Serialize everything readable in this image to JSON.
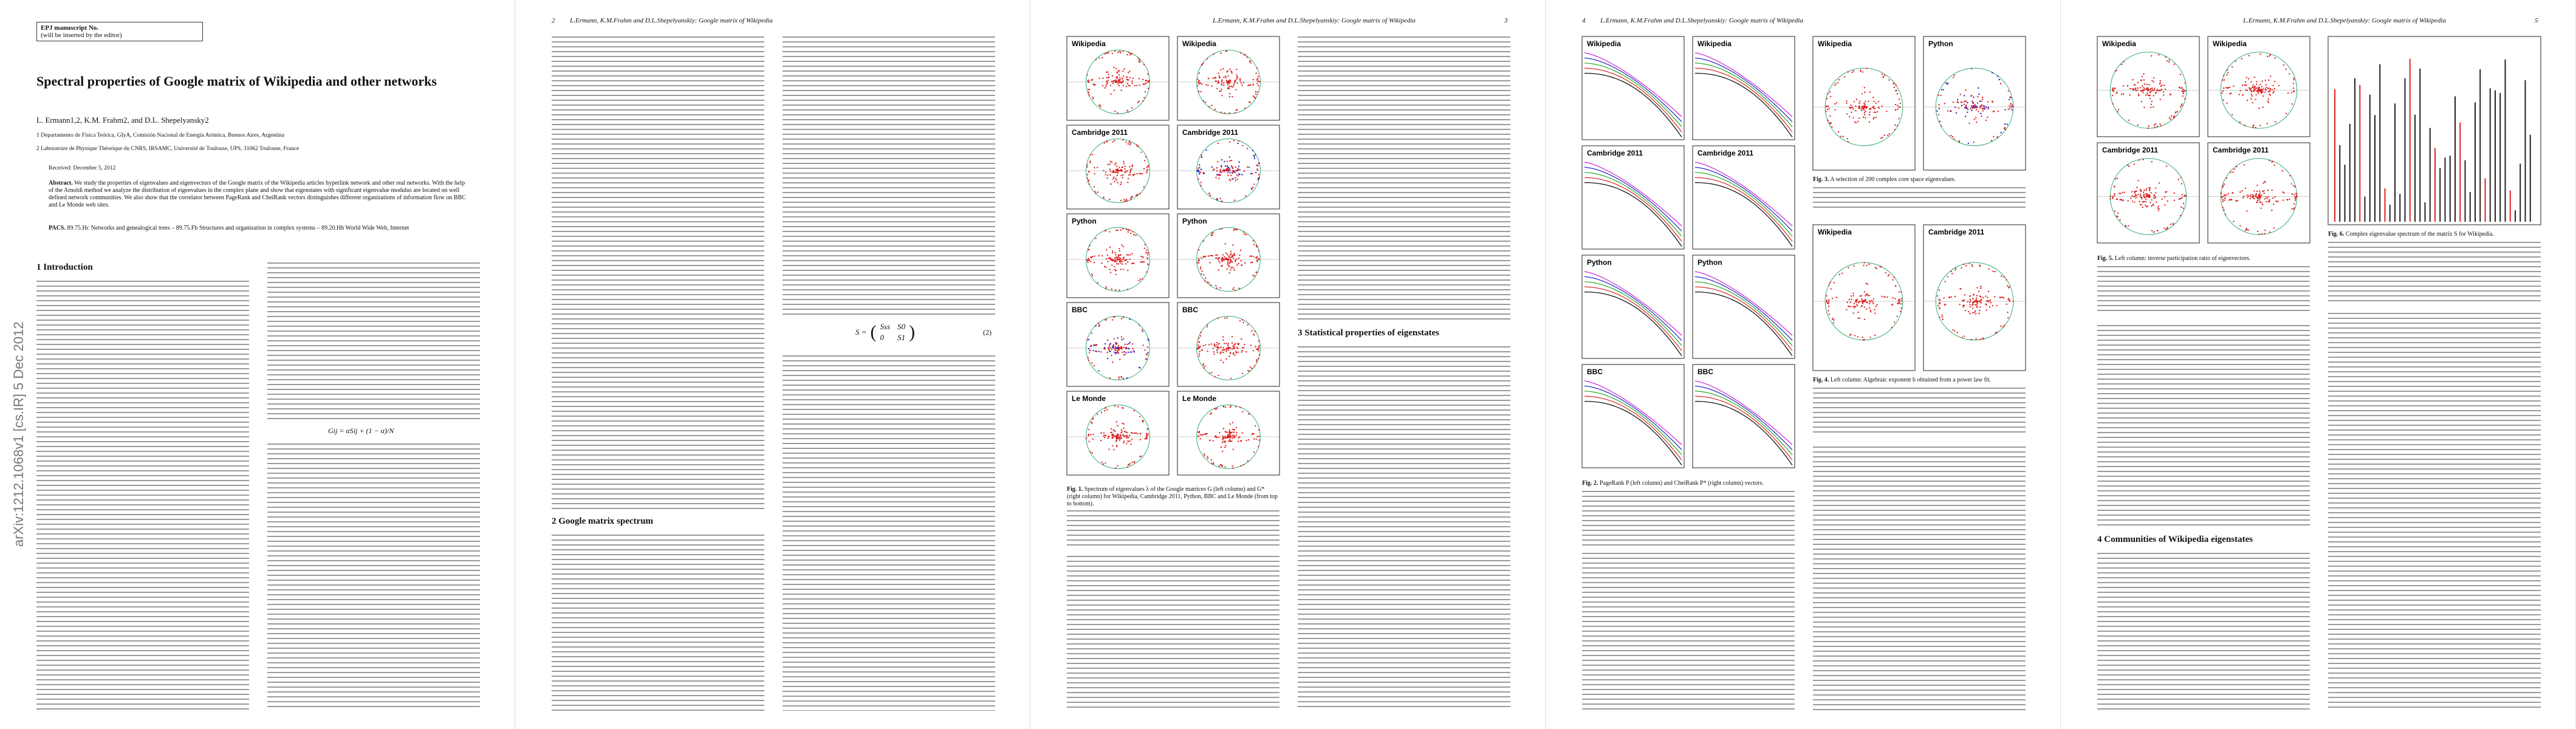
{
  "page1": {
    "box_title": "EPJ manuscript No.",
    "box_note": "(will be inserted by the editor)",
    "title": "Spectral properties of Google matrix of Wikipedia and other networks",
    "authors": "L. Ermann1,2, K.M. Frahm2, and D.L. Shepelyansky2",
    "affiliations": [
      "1 Departamento de Física Teórica, GIyA, Comisión Nacional de Energía Atómica, Buenos Aires, Argentina",
      "2 Laboratoire de Physique Théorique du CNRS, IRSAMC, Université de Toulouse, UPS, 31062 Toulouse, France"
    ],
    "received": "Received: December 5, 2012",
    "abstract_label": "Abstract.",
    "abstract": "We study the properties of eigenvalues and eigenvectors of the Google matrix of the Wikipedia articles hyperlink network and other real networks. With the help of the Arnoldi method we analyze the distribution of eigenvalues in the complex plane and show that eigenstates with significant eigenvalue modulus are located on well defined network communities. We also show that the correlator between PageRank and CheiRank vectors distinguishes different organizations of information flow on BBC and Le Monde web sites.",
    "pacs_label": "PACS.",
    "pacs": "89.75.Hc Networks and genealogical trees – 89.75.Fb Structures and organization in complex systems – 89.20.Hh World Wide Web, Internet",
    "section": "1 Introduction",
    "equation": "Gij = αSij + (1 − α)/N",
    "sidebar": "arXiv:1212.1068v1 [cs.IR] 5 Dec 2012"
  },
  "page2": {
    "page_number": "2",
    "running_head": "L.Ermann, K.M.Frahm and D.L.Shepelyanskiy: Google matrix of Wikipedia",
    "section": "2 Google matrix spectrum",
    "equation_lhs": "S =",
    "equation_entries": [
      "Sss",
      "S0",
      "0",
      "S1"
    ],
    "equation_number": "(2)"
  },
  "page3": {
    "page_number": "3",
    "running_head": "L.Ermann, K.M.Frahm and D.L.Shepelyanskiy: Google matrix of Wikipedia",
    "panel_labels": [
      "Wikipedia",
      "Cambridge 2011",
      "Python",
      "BBC",
      "Le Monde"
    ],
    "caption_label": "Fig. 1.",
    "caption": "Spectrum of eigenvalues λ of the Google matrices G (left column) and G* (right column) for Wikipedia, Cambridge 2011, Python, BBC and Le Monde (from top to bottom).",
    "section": "3 Statistical properties of eigenstates"
  },
  "page4": {
    "page_number": "4",
    "running_head": "L.Ermann, K.M.Frahm and D.L.Shepelyanskiy: Google matrix of Wikipedia",
    "fig2_labels": [
      "Wikipedia",
      "Cambridge 2011",
      "Python",
      "BBC"
    ],
    "fig2_caption_label": "Fig. 2.",
    "fig2_caption": "PageRank P (left column) and CheiRank P* (right column) vectors.",
    "fig3_labels": [
      "Wikipedia",
      "Python"
    ],
    "fig3_caption_label": "Fig. 3.",
    "fig3_caption": "A selection of 200 complex core space eigenvalues.",
    "fig4_labels": [
      "Wikipedia",
      "Cambridge 2011"
    ],
    "fig4_caption_label": "Fig. 4.",
    "fig4_caption": "Left column: Algebraic exponent b obtained from a power law fit."
  },
  "page5": {
    "page_number": "5",
    "running_head": "L.Ermann, K.M.Frahm and D.L.Shepelyanskiy: Google matrix of Wikipedia",
    "fig5_labels": [
      "Wikipedia",
      "Wikipedia",
      "Cambridge 2011",
      "Cambridge 2011"
    ],
    "fig5_caption_label": "Fig. 5.",
    "fig5_caption": "Left column: inverse participation ratio of eigenvectors.",
    "fig6_caption_label": "Fig. 6.",
    "fig6_caption": "Complex eigenvalue spectrum of the matrix S for Wikipedia.",
    "section": "4 Communities of Wikipedia eigenstates"
  }
}
